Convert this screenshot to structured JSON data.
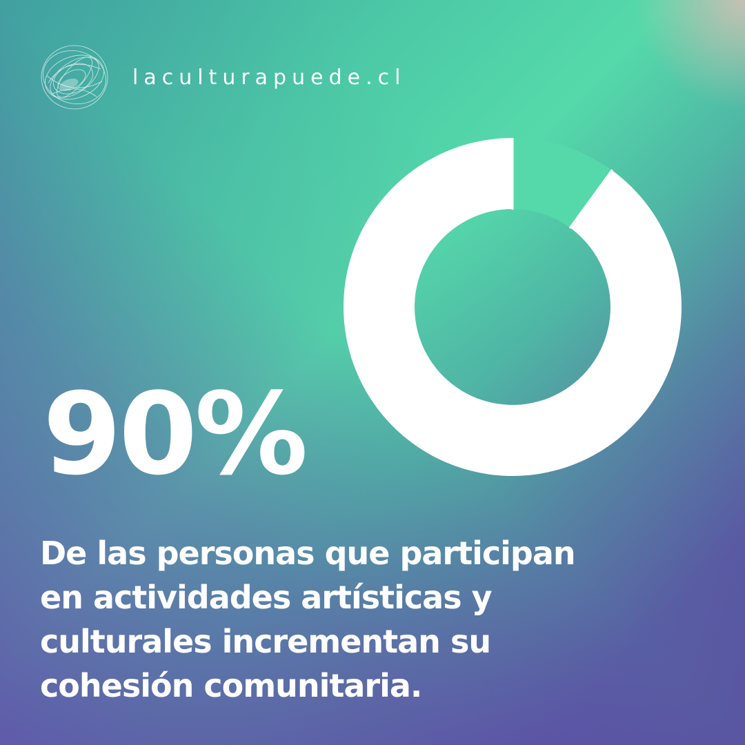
{
  "brand": {
    "logo_icon": "wireframe-sphere-icon",
    "site": "laculturapuede.cl"
  },
  "stat": {
    "value": "90%"
  },
  "caption": {
    "lines": [
      "De las personas que participan",
      "en actividades artísticas y",
      "culturales incrementan su",
      "cohesión comunitaria."
    ]
  },
  "chart_data": {
    "type": "pie",
    "values": [
      90,
      10
    ],
    "categories": [
      "",
      ""
    ],
    "colors": [
      "#ffffff",
      "#55d9aa"
    ]
  },
  "colors": {
    "teal": "#55d9aa",
    "purple": "#5b4ca1",
    "white": "#ffffff"
  }
}
